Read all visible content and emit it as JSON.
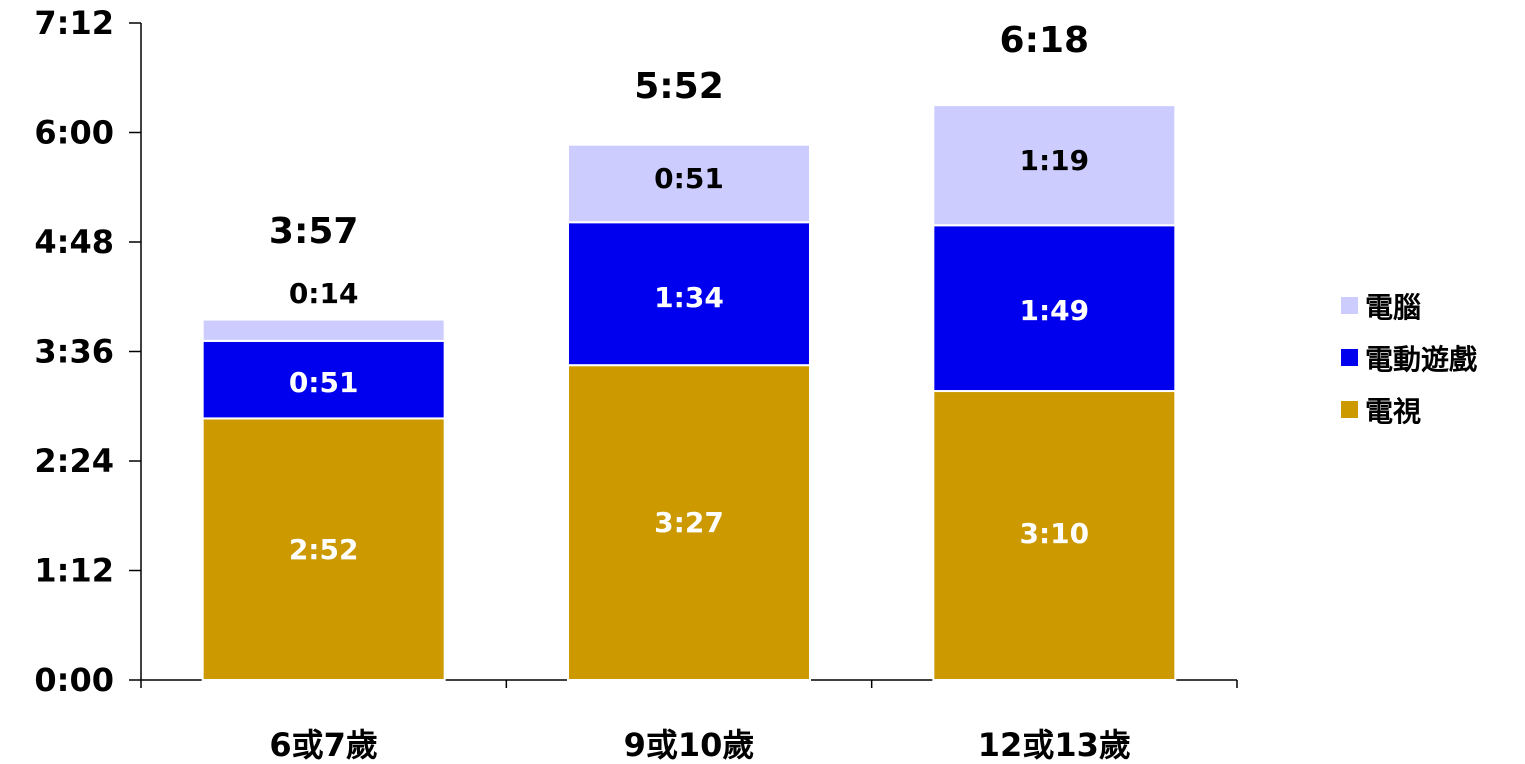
{
  "chart_data": {
    "type": "bar",
    "stacked": true,
    "categories": [
      "6或7歲",
      "9或10歲",
      "12或13歲"
    ],
    "y_unit": "minutes",
    "ylim": [
      0,
      432
    ],
    "yticks": [
      0,
      72,
      144,
      216,
      288,
      360,
      432
    ],
    "ytick_labels": [
      "0:00",
      "1:12",
      "2:24",
      "3:36",
      "4:48",
      "6:00",
      "7:12"
    ],
    "series": [
      {
        "name": "電視",
        "color": "#CC9900",
        "label_color": "#FFFFFF",
        "values": [
          172,
          207,
          190
        ],
        "value_labels": [
          "2:52",
          "3:27",
          "3:10"
        ]
      },
      {
        "name": "電動遊戲",
        "color": "#0000EE",
        "label_color": "#FFFFFF",
        "values": [
          51,
          94,
          109
        ],
        "value_labels": [
          "0:51",
          "1:34",
          "1:49"
        ]
      },
      {
        "name": "電腦",
        "color": "#CCCCFF",
        "label_color": "#000000",
        "values": [
          14,
          51,
          79
        ],
        "value_labels": [
          "0:14",
          "0:51",
          "1:19"
        ]
      }
    ],
    "totals": [
      237,
      352,
      378
    ],
    "total_labels": [
      "3:57",
      "5:52",
      "6:18"
    ],
    "legend": {
      "placement": "right",
      "order": [
        "電腦",
        "電動遊戲",
        "電視"
      ]
    },
    "grid": false
  }
}
